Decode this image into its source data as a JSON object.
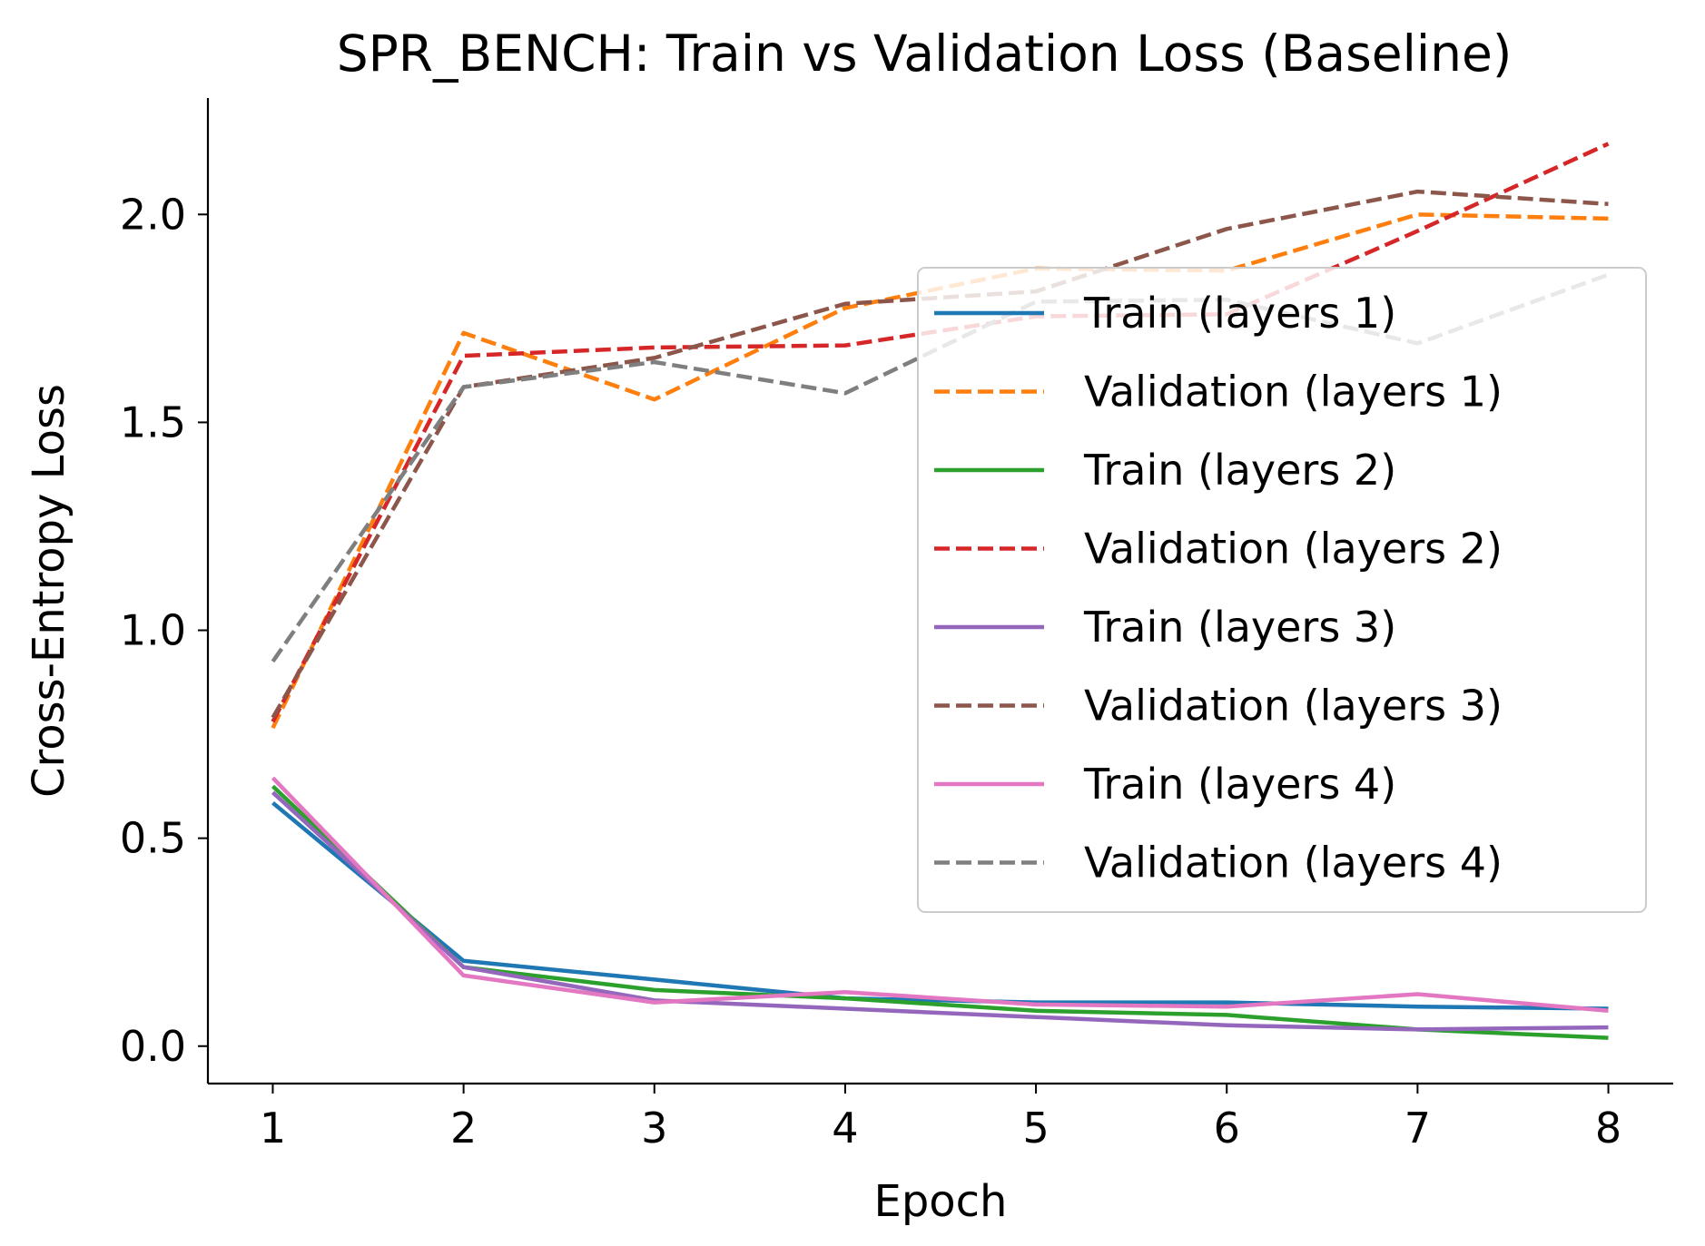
{
  "chart_data": {
    "type": "line",
    "title": "SPR_BENCH: Train vs Validation Loss (Baseline)",
    "xlabel": "Epoch",
    "ylabel": "Cross-Entropy Loss",
    "x": [
      1,
      2,
      3,
      4,
      5,
      6,
      7,
      8
    ],
    "xlim": [
      0.66,
      8.34
    ],
    "ylim": [
      -0.09,
      2.28
    ],
    "xticks": [
      "1",
      "2",
      "3",
      "4",
      "5",
      "6",
      "7",
      "8"
    ],
    "yticks": [
      "0.0",
      "0.5",
      "1.0",
      "1.5",
      "2.0"
    ],
    "grid": false,
    "legend_position": "right",
    "series": [
      {
        "name": "Train (layers 1)",
        "style": "solid",
        "color": "#1f77b4",
        "values": [
          0.585,
          0.205,
          0.16,
          0.115,
          0.105,
          0.105,
          0.095,
          0.09
        ]
      },
      {
        "name": "Validation (layers 1)",
        "style": "dashed",
        "color": "#ff7f0e",
        "values": [
          0.765,
          1.715,
          1.555,
          1.775,
          1.87,
          1.865,
          2.0,
          1.99
        ]
      },
      {
        "name": "Train (layers 2)",
        "style": "solid",
        "color": "#2ca02c",
        "values": [
          0.625,
          0.19,
          0.135,
          0.115,
          0.085,
          0.075,
          0.04,
          0.02
        ]
      },
      {
        "name": "Validation (layers 2)",
        "style": "dashed",
        "color": "#d62728",
        "values": [
          0.78,
          1.66,
          1.68,
          1.685,
          1.755,
          1.76,
          1.96,
          2.17
        ]
      },
      {
        "name": "Train (layers 3)",
        "style": "solid",
        "color": "#9467bd",
        "values": [
          0.61,
          0.19,
          0.11,
          0.09,
          0.07,
          0.05,
          0.04,
          0.045
        ]
      },
      {
        "name": "Validation (layers 3)",
        "style": "dashed",
        "color": "#8c564b",
        "values": [
          0.79,
          1.585,
          1.655,
          1.785,
          1.815,
          1.965,
          2.055,
          2.025
        ]
      },
      {
        "name": "Train (layers 4)",
        "style": "solid",
        "color": "#e377c2",
        "values": [
          0.645,
          0.17,
          0.105,
          0.13,
          0.1,
          0.095,
          0.125,
          0.085
        ]
      },
      {
        "name": "Validation (layers 4)",
        "style": "dashed",
        "color": "#7f7f7f",
        "values": [
          0.925,
          1.585,
          1.645,
          1.57,
          1.79,
          1.795,
          1.69,
          1.855
        ]
      }
    ]
  }
}
